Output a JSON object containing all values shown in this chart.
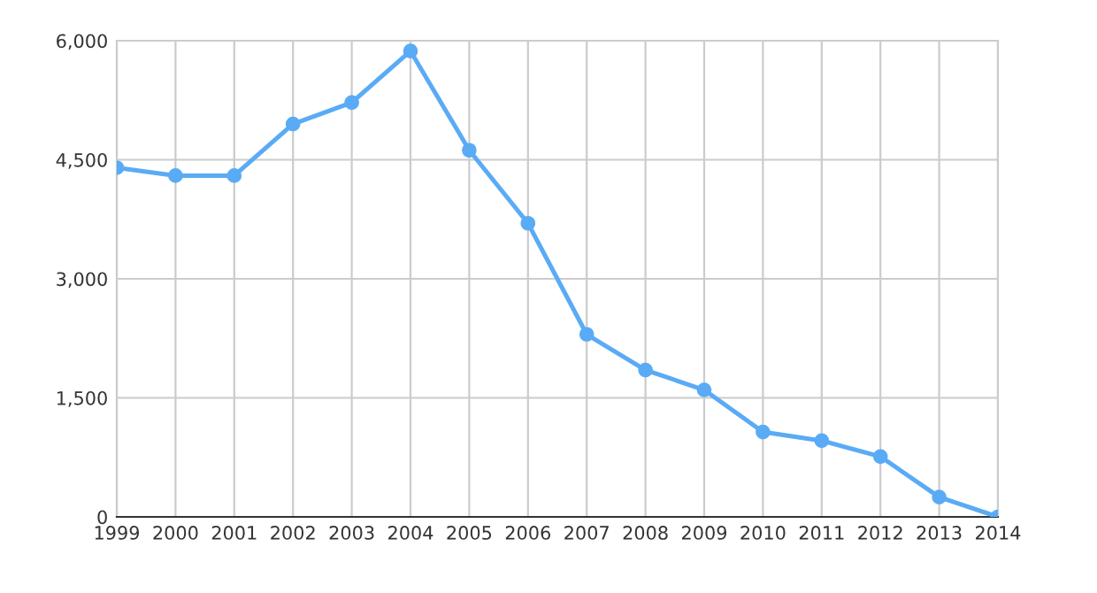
{
  "chart_data": {
    "type": "line",
    "x": [
      1999,
      2000,
      2001,
      2002,
      2003,
      2004,
      2005,
      2006,
      2007,
      2008,
      2009,
      2010,
      2011,
      2012,
      2013,
      2014
    ],
    "series": [
      {
        "color": "#5aabf5",
        "values": [
          4400,
          4300,
          4300,
          4950,
          5220,
          5870,
          4620,
          3700,
          2300,
          1850,
          1600,
          1070,
          960,
          760,
          250,
          0
        ]
      }
    ],
    "xlim": [
      1999,
      2014
    ],
    "xticks": [
      1999,
      2000,
      2001,
      2002,
      2003,
      2004,
      2005,
      2006,
      2007,
      2008,
      2009,
      2010,
      2011,
      2012,
      2013,
      2014
    ],
    "ylim": [
      0,
      6000
    ],
    "yticks": [
      {
        "value": 0,
        "label": "0"
      },
      {
        "value": 1500,
        "label": "1,500"
      },
      {
        "value": 3000,
        "label": "3,000"
      },
      {
        "value": 4500,
        "label": "4,500"
      },
      {
        "value": 6000,
        "label": "6,000"
      }
    ],
    "grid": true,
    "marker": "circle",
    "line_style": "solid"
  }
}
